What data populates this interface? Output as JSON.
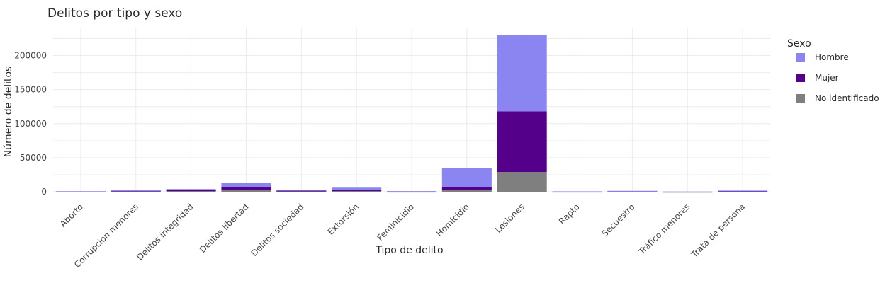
{
  "chart_data": {
    "type": "bar",
    "stacked": true,
    "title": "Delitos por tipo y sexo",
    "xlabel": "Tipo de delito",
    "ylabel": "Número de delitos",
    "ylim": [
      0,
      240000
    ],
    "yticks": [
      0,
      50000,
      100000,
      150000,
      200000
    ],
    "grid": true,
    "legend": {
      "title": "Sexo",
      "placement": "right"
    },
    "categories": [
      "Aborto",
      "Corrupción menores",
      "Delitos integridad",
      "Delitos libertad",
      "Delitos sociedad",
      "Extorsión",
      "Feminicidio",
      "Homicidio",
      "Lesiones",
      "Rapto",
      "Secuestro",
      "Tráfico menores",
      "Trata de persona"
    ],
    "series": [
      {
        "name": "No identificado",
        "color": "#7f7f7f",
        "values": [
          300,
          400,
          1000,
          2000,
          1200,
          1000,
          100,
          2000,
          29000,
          100,
          300,
          50,
          200
        ]
      },
      {
        "name": "Mujer",
        "color": "#55008a",
        "values": [
          200,
          1200,
          1200,
          5000,
          600,
          2000,
          500,
          5000,
          89000,
          300,
          300,
          50,
          600
        ]
      },
      {
        "name": "Hombre",
        "color": "#8b85f2",
        "values": [
          300,
          500,
          1800,
          6000,
          800,
          3000,
          300,
          28000,
          112000,
          200,
          700,
          50,
          900
        ]
      }
    ]
  }
}
